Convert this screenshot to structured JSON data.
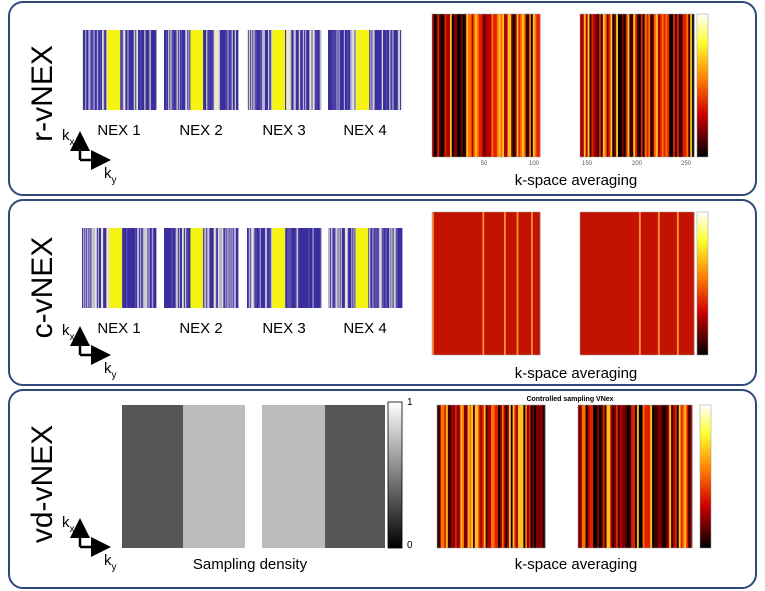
{
  "panels": [
    {
      "label": "r-vNEX",
      "images": [
        "NEX 1",
        "NEX 2",
        "NEX 3",
        "NEX 4"
      ],
      "caption": "k-space averaging",
      "ticks": [
        "50",
        "100",
        "150",
        "200",
        "250"
      ]
    },
    {
      "label": "c-vNEX",
      "images": [
        "NEX 1",
        "NEX 2",
        "NEX 3",
        "NEX 4"
      ],
      "caption": "k-space averaging"
    },
    {
      "label": "vd-vNEX",
      "density_caption": "Sampling density",
      "colorbar": [
        "1",
        "0"
      ],
      "title": "Controlled sampling VNex",
      "caption": "k-space averaging"
    }
  ],
  "axes": {
    "kx": {
      "base": "k",
      "sub": "x"
    },
    "ky": {
      "base": "k",
      "sub": "y"
    }
  }
}
